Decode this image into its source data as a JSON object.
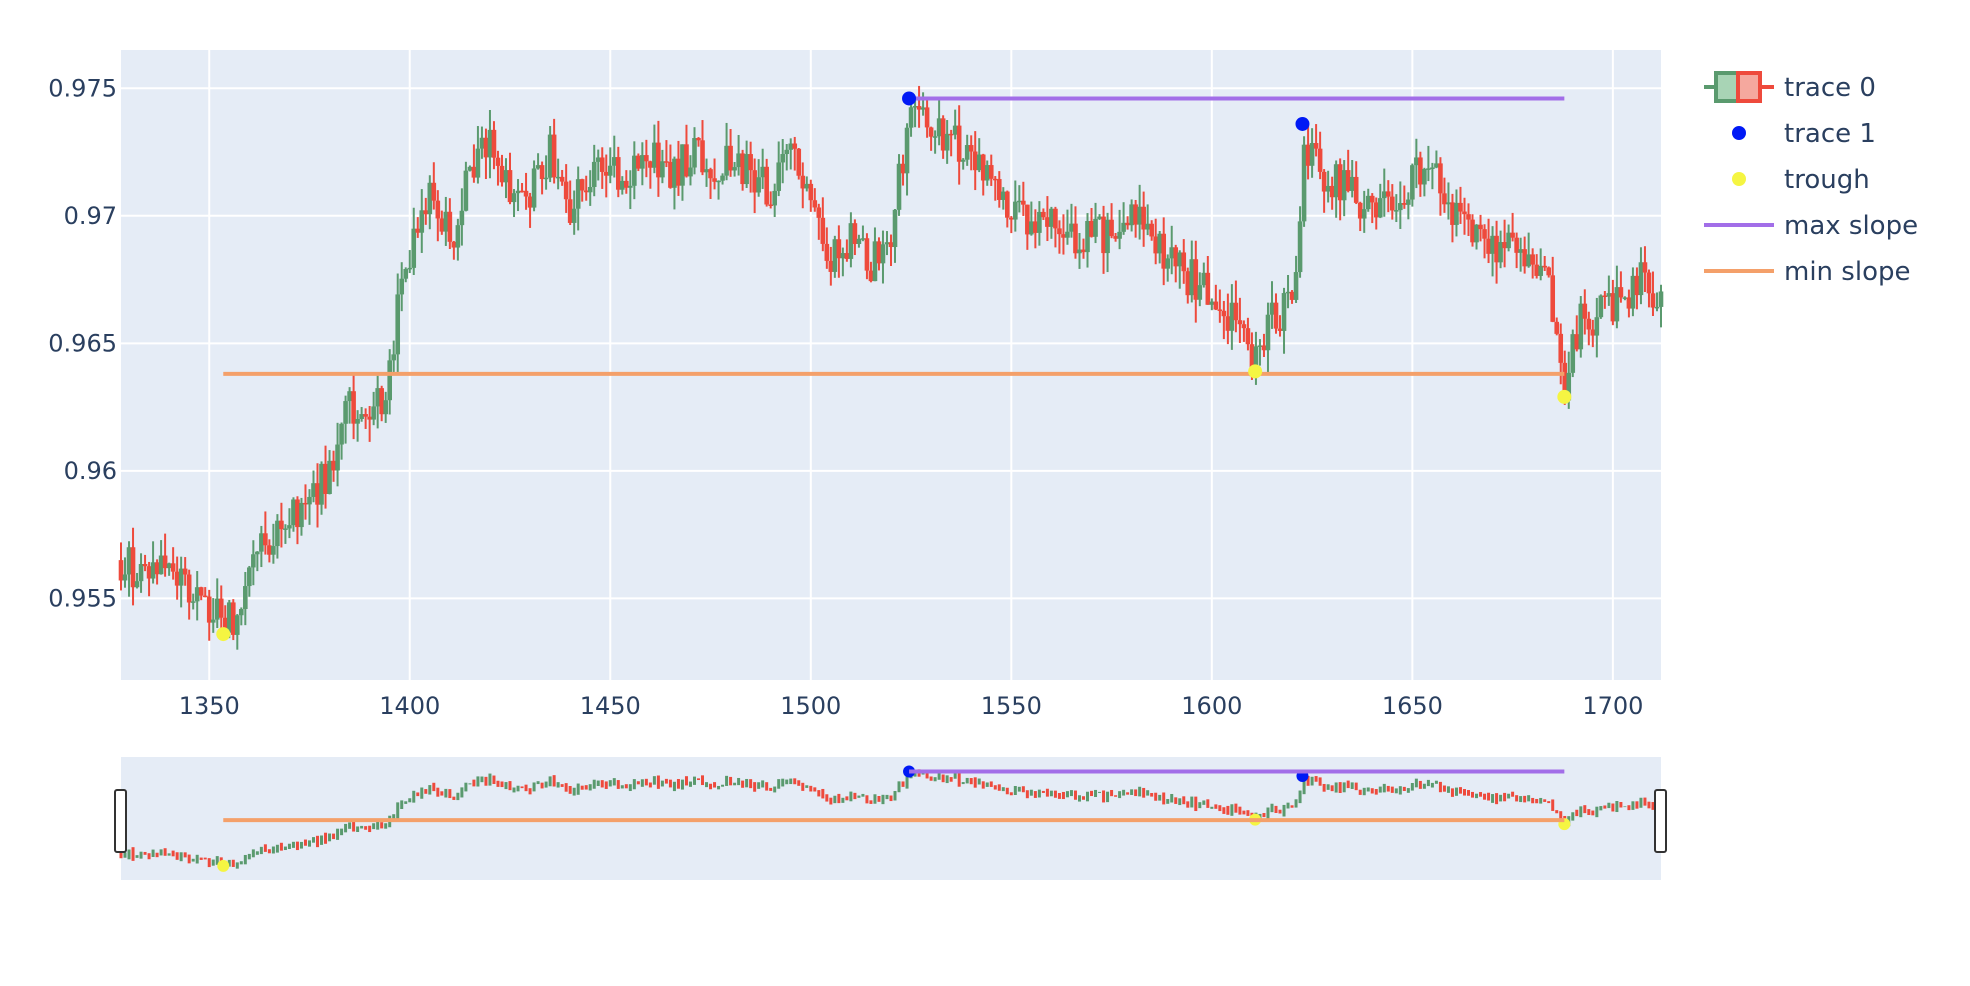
{
  "chart_data": {
    "type": "candlestick",
    "title": "",
    "xlabel": "",
    "ylabel": "",
    "xlim": [
      1328,
      1712
    ],
    "ylim": [
      0.9518,
      0.9765
    ],
    "x_ticks": [
      1350,
      1400,
      1450,
      1500,
      1550,
      1600,
      1650,
      1700
    ],
    "x_tick_labels": [
      "1350",
      "1400",
      "1450",
      "1500",
      "1550",
      "1600",
      "1650",
      "1700"
    ],
    "y_ticks": [
      0.955,
      0.96,
      0.965,
      0.97,
      0.975
    ],
    "y_tick_labels": [
      "0.955",
      "0.96",
      "0.965",
      "0.97",
      "0.975"
    ],
    "grid": true,
    "legend_position": "top-right",
    "rangeslider": true,
    "colors": {
      "increasing": "#5a9a6e",
      "decreasing": "#ee4a3c",
      "plot_bg": "#e5ecf6",
      "grid": "#ffffff",
      "peak_marker": "#0019f5",
      "trough_marker": "#f5f542",
      "max_slope": "#a26ee8",
      "min_slope": "#f4a06a"
    },
    "close_path": [
      [
        1328,
        0.9565
      ],
      [
        1333,
        0.956
      ],
      [
        1338,
        0.9565
      ],
      [
        1345,
        0.9555
      ],
      [
        1350,
        0.9545
      ],
      [
        1354,
        0.9543
      ],
      [
        1357,
        0.954
      ],
      [
        1360,
        0.956
      ],
      [
        1365,
        0.9575
      ],
      [
        1370,
        0.958
      ],
      [
        1375,
        0.959
      ],
      [
        1380,
        0.96
      ],
      [
        1385,
        0.9625
      ],
      [
        1390,
        0.9615
      ],
      [
        1395,
        0.964
      ],
      [
        1398,
        0.968
      ],
      [
        1402,
        0.969
      ],
      [
        1405,
        0.971
      ],
      [
        1410,
        0.969
      ],
      [
        1415,
        0.9715
      ],
      [
        1420,
        0.973
      ],
      [
        1425,
        0.9705
      ],
      [
        1430,
        0.971
      ],
      [
        1435,
        0.9725
      ],
      [
        1440,
        0.9705
      ],
      [
        1445,
        0.9712
      ],
      [
        1450,
        0.972
      ],
      [
        1455,
        0.9715
      ],
      [
        1460,
        0.9725
      ],
      [
        1465,
        0.9715
      ],
      [
        1470,
        0.9725
      ],
      [
        1475,
        0.972
      ],
      [
        1480,
        0.9722
      ],
      [
        1485,
        0.9715
      ],
      [
        1490,
        0.971
      ],
      [
        1495,
        0.9725
      ],
      [
        1500,
        0.97
      ],
      [
        1505,
        0.9685
      ],
      [
        1510,
        0.969
      ],
      [
        1515,
        0.968
      ],
      [
        1520,
        0.9695
      ],
      [
        1525,
        0.974
      ],
      [
        1530,
        0.9735
      ],
      [
        1535,
        0.973
      ],
      [
        1540,
        0.9725
      ],
      [
        1545,
        0.971
      ],
      [
        1550,
        0.97
      ],
      [
        1555,
        0.9695
      ],
      [
        1560,
        0.97
      ],
      [
        1565,
        0.969
      ],
      [
        1570,
        0.9695
      ],
      [
        1575,
        0.969
      ],
      [
        1580,
        0.97
      ],
      [
        1585,
        0.969
      ],
      [
        1590,
        0.968
      ],
      [
        1595,
        0.9675
      ],
      [
        1600,
        0.967
      ],
      [
        1605,
        0.966
      ],
      [
        1610,
        0.9645
      ],
      [
        1615,
        0.966
      ],
      [
        1620,
        0.9665
      ],
      [
        1623,
        0.9725
      ],
      [
        1628,
        0.9715
      ],
      [
        1635,
        0.971
      ],
      [
        1640,
        0.97
      ],
      [
        1645,
        0.9705
      ],
      [
        1650,
        0.9715
      ],
      [
        1655,
        0.972
      ],
      [
        1660,
        0.97
      ],
      [
        1665,
        0.9695
      ],
      [
        1670,
        0.969
      ],
      [
        1675,
        0.9685
      ],
      [
        1680,
        0.968
      ],
      [
        1684,
        0.967
      ],
      [
        1688,
        0.9635
      ],
      [
        1692,
        0.9658
      ],
      [
        1697,
        0.9662
      ],
      [
        1702,
        0.9665
      ],
      [
        1707,
        0.9675
      ],
      [
        1712,
        0.967
      ]
    ],
    "series": [
      {
        "name": "trace 0",
        "type": "candlestick"
      },
      {
        "name": "trace 1",
        "type": "markers",
        "points": [
          [
            1524.5,
            0.9746
          ],
          [
            1622.6,
            0.9736
          ]
        ]
      },
      {
        "name": "trough",
        "type": "markers",
        "points": [
          [
            1353.5,
            0.9536
          ],
          [
            1610.8,
            0.9639
          ],
          [
            1687.9,
            0.9629
          ]
        ]
      },
      {
        "name": "max slope",
        "type": "line",
        "points": [
          [
            1524.5,
            0.9746
          ],
          [
            1687.9,
            0.9746
          ]
        ]
      },
      {
        "name": "min slope",
        "type": "line",
        "points": [
          [
            1353.5,
            0.9638
          ],
          [
            1687.9,
            0.9638
          ]
        ]
      }
    ]
  }
}
